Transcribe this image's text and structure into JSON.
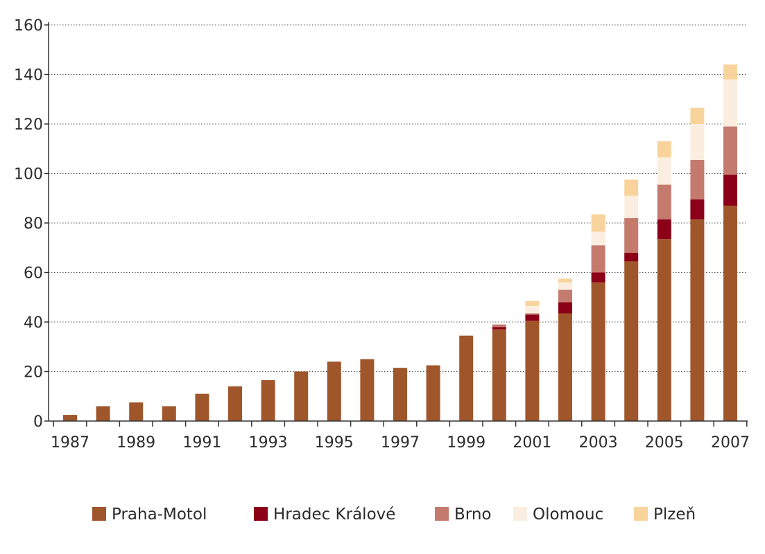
{
  "chart_data": {
    "type": "bar",
    "stacked": true,
    "categories": [
      "1987",
      "1988",
      "1989",
      "1990",
      "1991",
      "1992",
      "1993",
      "1994",
      "1995",
      "1996",
      "1997",
      "1998",
      "1999",
      "2000",
      "2001",
      "2002",
      "2003",
      "2004",
      "2005",
      "2006",
      "2007"
    ],
    "x_tick_labels": [
      "1987",
      "1989",
      "1991",
      "1993",
      "1995",
      "1997",
      "1999",
      "2001",
      "2003",
      "2005",
      "2007"
    ],
    "ylim": [
      0,
      160
    ],
    "y_ticks": [
      0,
      20,
      40,
      60,
      80,
      100,
      120,
      140,
      160
    ],
    "grid": true,
    "legend_position": "bottom",
    "series": [
      {
        "name": "Praha-Motol",
        "color": "#a0562b",
        "values": [
          2.5,
          6,
          7.5,
          6,
          11,
          14,
          16.5,
          20,
          24,
          25,
          21.5,
          22.5,
          34.5,
          37,
          40.5,
          43.5,
          56,
          64.5,
          73.5,
          81.5,
          87
        ]
      },
      {
        "name": "Hradec Králové",
        "color": "#8b0017",
        "values": [
          0,
          0,
          0,
          0,
          0,
          0,
          0,
          0,
          0,
          0,
          0,
          0,
          0,
          1,
          2.5,
          4.5,
          4,
          3.5,
          8,
          8,
          12.5
        ]
      },
      {
        "name": "Brno",
        "color": "#c47b6d",
        "values": [
          0,
          0,
          0,
          0,
          0,
          0,
          0,
          0,
          0,
          0,
          0,
          0,
          0,
          1,
          0.5,
          5,
          11,
          14,
          14,
          16,
          19.5
        ]
      },
      {
        "name": "Olomouc",
        "color": "#fbeee0",
        "values": [
          0,
          0,
          0,
          0,
          0,
          0,
          0,
          0,
          0,
          0,
          0,
          0,
          0,
          0,
          3,
          3,
          5.5,
          9,
          11,
          14.5,
          19
        ]
      },
      {
        "name": "Plzeň",
        "color": "#f8d49c",
        "values": [
          0,
          0,
          0,
          0,
          0,
          0,
          0,
          0,
          0,
          0,
          0,
          0,
          0,
          0,
          2,
          1.5,
          7,
          6.5,
          6.5,
          6.5,
          6
        ]
      }
    ]
  }
}
